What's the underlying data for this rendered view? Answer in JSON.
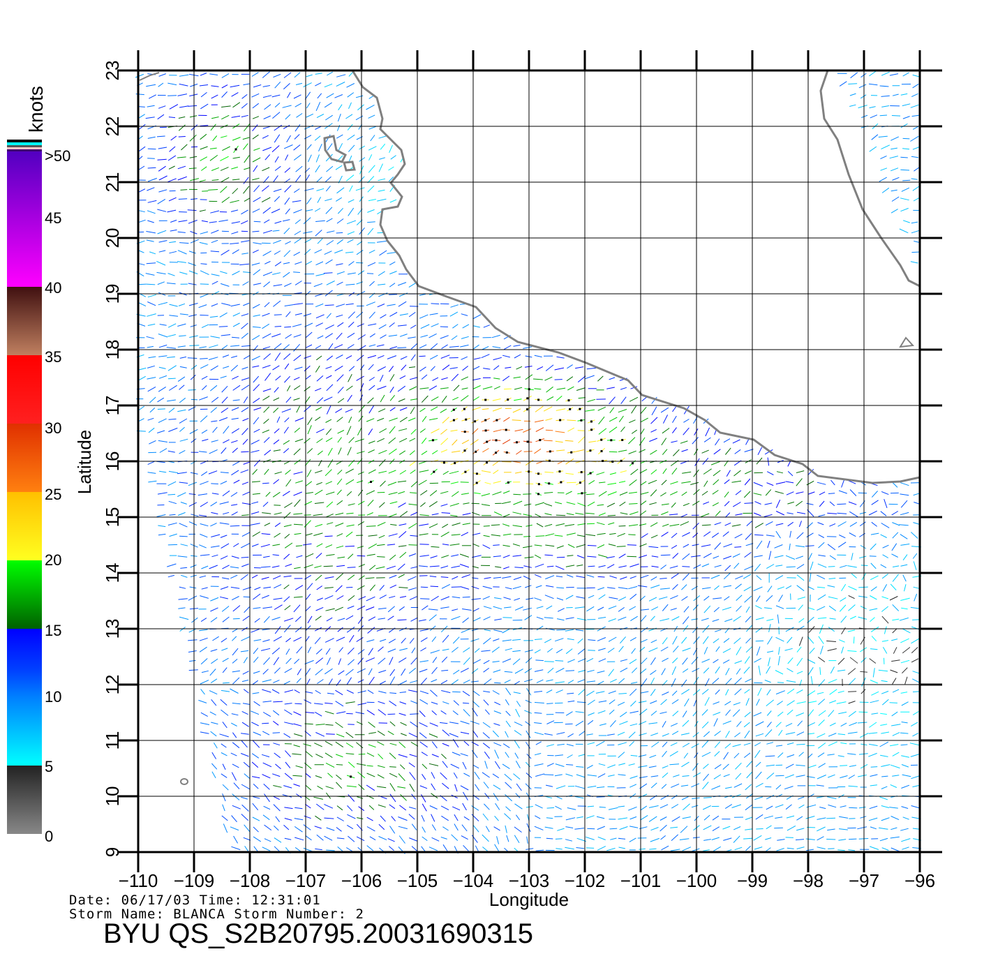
{
  "colorbar": {
    "unit": "knots",
    "labels": [
      ">50",
      "45",
      "40",
      "35",
      "30",
      "25",
      "20",
      "15",
      "10",
      "5",
      "0"
    ],
    "stops": [
      {
        "knots": 0,
        "color": "#888888"
      },
      {
        "knots": 5,
        "color": "#222222"
      },
      {
        "knots": 5,
        "color": "#00ffff"
      },
      {
        "knots": 10,
        "color": "#0080ff"
      },
      {
        "knots": 12,
        "color": "#0040ff"
      },
      {
        "knots": 15,
        "color": "#0000ff"
      },
      {
        "knots": 15,
        "color": "#006000"
      },
      {
        "knots": 20,
        "color": "#00ff00"
      },
      {
        "knots": 20,
        "color": "#ffff20"
      },
      {
        "knots": 25,
        "color": "#ffc000"
      },
      {
        "knots": 25,
        "color": "#ff8010"
      },
      {
        "knots": 30,
        "color": "#e03000"
      },
      {
        "knots": 30,
        "color": "#ff2020"
      },
      {
        "knots": 35,
        "color": "#ff0000"
      },
      {
        "knots": 35,
        "color": "#c08060"
      },
      {
        "knots": 40,
        "color": "#401010"
      },
      {
        "knots": 40,
        "color": "#ff00ff"
      },
      {
        "knots": 50,
        "color": "#5000c0"
      }
    ]
  },
  "axes": {
    "x_label": "Longitude",
    "y_label": "Latitude",
    "x_ticks": [
      "−110",
      "−109",
      "−108",
      "−107",
      "−106",
      "−105",
      "−104",
      "−103",
      "−102",
      "−101",
      "−100",
      "−99",
      "−98",
      "−97",
      "−96"
    ],
    "y_ticks": [
      "23",
      "22",
      "21",
      "20",
      "19",
      "18",
      "17",
      "16",
      "15",
      "14",
      "13",
      "12",
      "11",
      "10",
      "9"
    ],
    "lon_range": [
      -110,
      -96
    ],
    "lat_range": [
      9,
      23
    ]
  },
  "info": {
    "date_line": "Date: 06/17/03   Time: 12:31:01",
    "storm_line": "Storm Name: BLANCA   Storm Number: 2",
    "product": "BYU QS_S2B20795.20031690315"
  },
  "colors": {
    "coast": "#808080",
    "grid": "#000000",
    "ambiguity_dot": "#000000"
  }
}
